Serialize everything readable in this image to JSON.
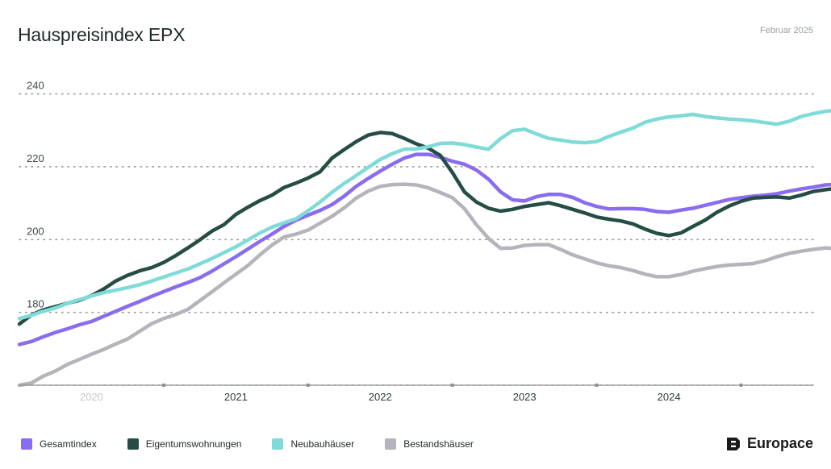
{
  "header": {
    "title": "Hauspreisindex EPX",
    "date": "Februar 2025"
  },
  "brand": {
    "name": "Europace",
    "icon": "europace-logo-icon"
  },
  "colors": {
    "gesamt": "#8a6cf0",
    "eigentum": "#264d45",
    "neubau": "#7fdbd8",
    "bestand": "#b5b3bb",
    "grid": "#9a9a9a",
    "axis": "#8f8f8f",
    "ticklabel": "#3f4a4a",
    "xlabel_dim": "#c7c9cc",
    "xlabel": "#2f3b3b"
  },
  "chart_data": {
    "type": "line",
    "title": "Hauspreisindex EPX",
    "xlabel": "",
    "ylabel": "",
    "ylim": [
      160,
      243
    ],
    "y_ticks": [
      160,
      180,
      200,
      220,
      240
    ],
    "y_tick_labels": [
      "",
      "180",
      "200",
      "220",
      "240"
    ],
    "x_start": "2019-08",
    "x_end": "2025-02",
    "x_labels": [
      {
        "label": "2020",
        "date": "2020-02"
      },
      {
        "label": "2021",
        "date": "2021-02"
      },
      {
        "label": "2022",
        "date": "2022-02"
      },
      {
        "label": "2023",
        "date": "2023-02"
      },
      {
        "label": "2024",
        "date": "2024-02"
      }
    ],
    "x_tick_dates": [
      "2020-08",
      "2021-08",
      "2022-08",
      "2023-08",
      "2024-08"
    ],
    "grid": true,
    "legend": "bottom-left",
    "series": [
      {
        "name": "Gesamtindex",
        "color_key": "gesamt",
        "values": [
          171.2,
          172,
          173.3,
          174.5,
          175.5,
          176.6,
          177.5,
          178.9,
          180.3,
          181.7,
          183,
          184.4,
          185.7,
          187,
          188.2,
          189.5,
          191.3,
          193.3,
          195.3,
          197.4,
          199.5,
          201.5,
          203.6,
          205.3,
          206.7,
          208,
          209.6,
          211.9,
          214.6,
          216.8,
          218.8,
          220.7,
          222.4,
          223.4,
          223.4,
          222.6,
          221.5,
          220.7,
          219.1,
          216.6,
          213.1,
          210.9,
          210.6,
          211.8,
          212.4,
          212.4,
          211.6,
          210.1,
          209.1,
          208.4,
          208.5,
          208.5,
          208.3,
          207.7,
          207.5,
          208.1,
          208.6,
          209.4,
          210.2,
          211,
          211.5,
          211.9,
          212.2,
          212.6,
          213.3,
          213.9,
          214.4,
          215,
          215.2,
          215.2
        ]
      },
      {
        "name": "Eigentumswohnungen",
        "color_key": "eigentum",
        "values": [
          176.8,
          179.3,
          180.7,
          181.6,
          182.5,
          183.3,
          184.6,
          186.4,
          188.6,
          190.2,
          191.4,
          192.3,
          193.7,
          195.6,
          197.7,
          199.9,
          202.3,
          204.1,
          206.9,
          208.9,
          210.7,
          212.2,
          214.3,
          215.5,
          216.9,
          218.6,
          222.4,
          224.7,
          226.9,
          228.7,
          229.4,
          229.1,
          227.8,
          226.3,
          225.1,
          223.1,
          218.4,
          213.1,
          210.3,
          208.6,
          207.8,
          208.3,
          209.1,
          209.6,
          210.1,
          209.3,
          208.3,
          207.3,
          206.2,
          205.6,
          205.1,
          204.3,
          202.9,
          201.7,
          201.1,
          201.8,
          203.6,
          205.3,
          207.5,
          209.2,
          210.5,
          211.4,
          211.6,
          211.7,
          211.4,
          212.2,
          213.2,
          213.7,
          214.1,
          214.1
        ]
      },
      {
        "name": "Neubauhäuser",
        "color_key": "neubau",
        "values": [
          178.3,
          179.2,
          180.3,
          181.2,
          182.5,
          183.5,
          184.5,
          185.4,
          186.1,
          186.8,
          187.6,
          188.6,
          189.7,
          190.8,
          191.9,
          193.3,
          194.8,
          196.4,
          198,
          199.9,
          201.8,
          203.4,
          204.6,
          205.7,
          207.9,
          210.3,
          213,
          215.4,
          217.6,
          219.8,
          222,
          223.6,
          224.8,
          224.9,
          225.5,
          226.4,
          226.5,
          226.1,
          225.4,
          224.8,
          227.7,
          229.9,
          230.3,
          229,
          227.8,
          227.3,
          226.8,
          226.6,
          226.9,
          228.3,
          229.5,
          230.6,
          232.2,
          233.1,
          233.7,
          234,
          234.4,
          233.8,
          233.4,
          233.1,
          232.9,
          232.6,
          232.1,
          231.7,
          232.5,
          233.8,
          234.6,
          235.2,
          235.6,
          235.9
        ]
      },
      {
        "name": "Bestandshäuser",
        "color_key": "bestand",
        "values": [
          160,
          160.6,
          162.5,
          163.9,
          165.7,
          167.1,
          168.5,
          169.8,
          171.3,
          172.7,
          174.8,
          176.9,
          178.3,
          179.4,
          180.8,
          183.2,
          185.6,
          188.1,
          190.5,
          192.9,
          195.8,
          198.5,
          200.7,
          201.5,
          202.6,
          204.5,
          206.4,
          208.7,
          211.4,
          213.3,
          214.6,
          215.1,
          215.2,
          215,
          214.2,
          212.9,
          211.5,
          208.5,
          204.1,
          200.3,
          197.6,
          197.7,
          198.4,
          198.6,
          198.6,
          197.3,
          195.8,
          194.7,
          193.6,
          192.8,
          192.3,
          191.5,
          190.5,
          189.8,
          189.8,
          190.4,
          191.3,
          192,
          192.6,
          193,
          193.2,
          193.4,
          194.2,
          195.3,
          196.2,
          196.8,
          197.3,
          197.7,
          197.5,
          196.9
        ]
      }
    ]
  },
  "legend": [
    {
      "label": "Gesamtindex",
      "color_key": "gesamt"
    },
    {
      "label": "Eigentumswohnungen",
      "color_key": "eigentum"
    },
    {
      "label": "Neubauhäuser",
      "color_key": "neubau"
    },
    {
      "label": "Bestandshäuser",
      "color_key": "bestand"
    }
  ]
}
